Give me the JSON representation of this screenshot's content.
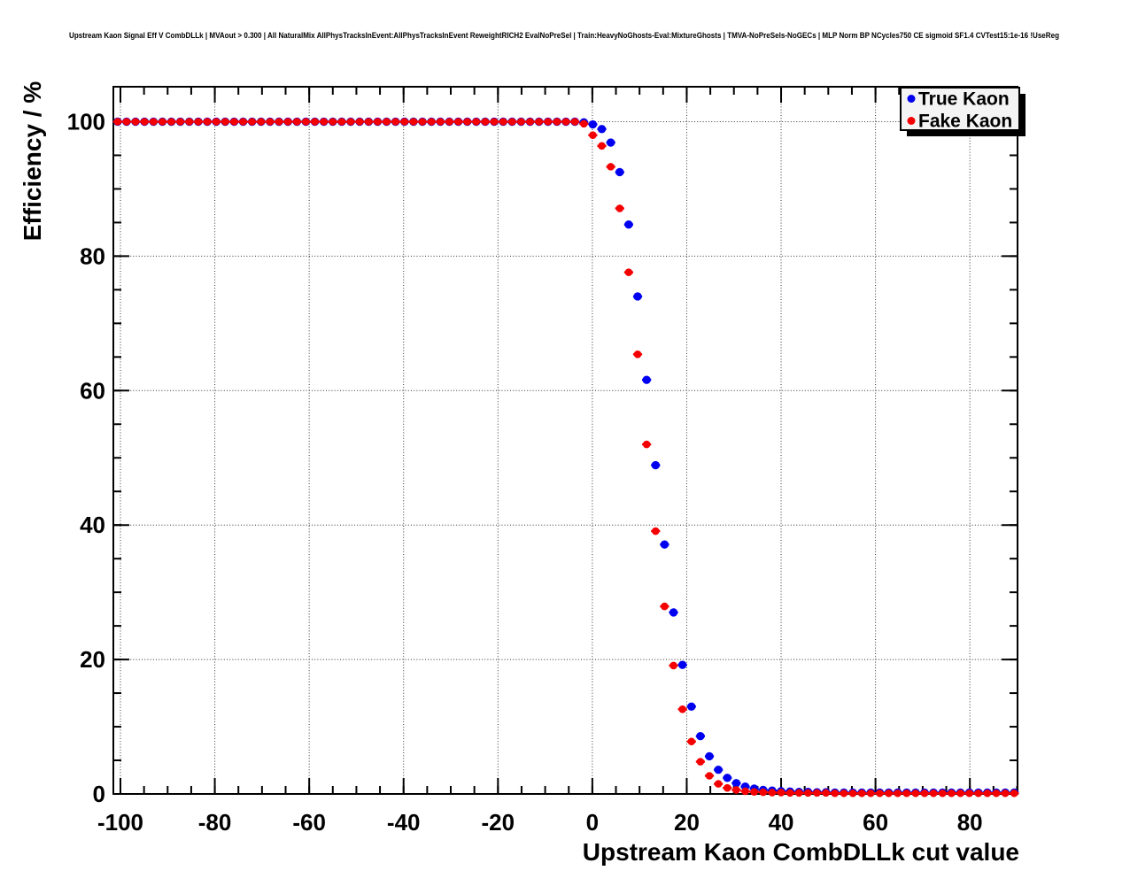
{
  "title": "Upstream Kaon Signal Eff V CombDLLk | MVAout > 0.300 | All NaturalMix AllPhysTracksInEvent:AllPhysTracksInEvent ReweightRICH2 EvalNoPreSel | Train:HeavyNoGhosts-Eval:MixtureGhosts | TMVA-NoPreSels-NoGECs | MLP Norm BP NCycles750 CE sigmoid SF1.4 CVTest15:1e-16 !UseReg",
  "chart_data": {
    "type": "scatter",
    "title": "Upstream Kaon Signal Eff V CombDLLk | MVAout > 0.300 | All NaturalMix AllPhysTracksInEvent:AllPhysTracksInEvent ReweightRICH2 EvalNoPreSel | Train:HeavyNoGhosts-Eval:MixtureGhosts | TMVA-NoPreSels-NoGECs | MLP Norm BP NCycles750 CE sigmoid SF1.4 CVTest15:1e-16 !UseReg",
    "xlabel": "Upstream Kaon CombDLLk cut value",
    "ylabel": "Efficiency / %",
    "xlim": [
      -101.5,
      90.1
    ],
    "ylim": [
      0,
      105.2
    ],
    "grid": true,
    "x_ticks_major": [
      -100,
      -80,
      -60,
      -40,
      -20,
      0,
      20,
      40,
      60,
      80
    ],
    "x_tick_labels": [
      "-100",
      "-80",
      "-60",
      "-40",
      "-20",
      "0",
      "20",
      "40",
      "60",
      "80"
    ],
    "y_ticks_major": [
      0,
      20,
      40,
      60,
      80,
      100
    ],
    "y_tick_labels": [
      "0",
      "20",
      "40",
      "60",
      "80",
      "100"
    ],
    "x_minor_step": 5,
    "y_minor_step": 5,
    "legend": {
      "position": "top-right",
      "entries": [
        {
          "label": "True Kaon",
          "color": "#0000f0"
        },
        {
          "label": "Fake Kaon",
          "color": "#f40000"
        }
      ]
    },
    "x_start": -100.6,
    "x_step": 1.9,
    "series": [
      {
        "name": "True Kaon",
        "color": "#0000f0",
        "values": [
          100,
          100,
          100,
          100,
          100,
          100,
          100,
          100,
          100,
          100,
          100,
          100,
          100,
          100,
          100,
          100,
          100,
          100,
          100,
          100,
          100,
          100,
          100,
          100,
          100,
          100,
          100,
          100,
          100,
          100,
          100,
          100,
          100,
          100,
          100,
          100,
          100,
          100,
          100,
          100,
          100,
          100,
          100,
          100,
          100,
          100,
          100,
          100,
          100,
          100,
          100,
          100,
          99.9,
          99.6,
          98.9,
          96.9,
          92.5,
          84.7,
          74,
          61.6,
          48.9,
          37.1,
          27,
          19.2,
          13,
          8.6,
          5.6,
          3.6,
          2.4,
          1.6,
          1.1,
          0.8,
          0.6,
          0.5,
          0.4,
          0.35,
          0.3,
          0.3,
          0.25,
          0.25,
          0.2,
          0.2,
          0.2,
          0.2,
          0.2,
          0.2,
          0.2,
          0.2,
          0.2,
          0.2,
          0.2,
          0.2,
          0.2,
          0.2,
          0.2,
          0.2,
          0.2,
          0.2,
          0.2,
          0.2,
          0.2
        ]
      },
      {
        "name": "Fake Kaon",
        "color": "#f40000",
        "values": [
          100,
          100,
          100,
          100,
          100,
          100,
          100,
          100,
          100,
          100,
          100,
          100,
          100,
          100,
          100,
          100,
          100,
          100,
          100,
          100,
          100,
          100,
          100,
          100,
          100,
          100,
          100,
          100,
          100,
          100,
          100,
          100,
          100,
          100,
          100,
          100,
          100,
          100,
          100,
          100,
          100,
          100,
          100,
          100,
          100,
          100,
          100,
          100,
          100,
          100,
          100,
          100,
          99.7,
          98,
          96.4,
          93.3,
          87.1,
          77.6,
          65.4,
          52,
          39.1,
          27.9,
          19.1,
          12.6,
          7.8,
          4.8,
          2.7,
          1.5,
          0.9,
          0.6,
          0.4,
          0.3,
          0.25,
          0.2,
          0.2,
          0.15,
          0.15,
          0.15,
          0.15,
          0.15,
          0.1,
          0.1,
          0.1,
          0.1,
          0.1,
          0.1,
          0.1,
          0.1,
          0.1,
          0.1,
          0.1,
          0.1,
          0.1,
          0.1,
          0.1,
          0.1,
          0.1,
          0.1,
          0.1,
          0.1,
          0.1
        ]
      }
    ]
  }
}
